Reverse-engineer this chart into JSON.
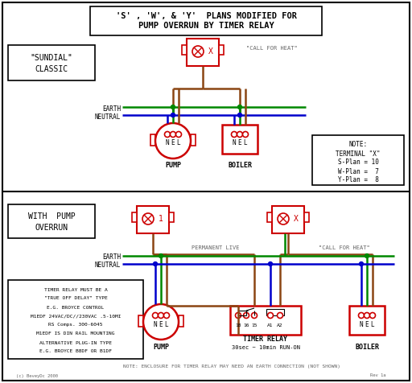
{
  "title_line1": "'S' , 'W', & 'Y'  PLANS MODIFIED FOR",
  "title_line2": "PUMP OVERRUN BY TIMER RELAY",
  "bg_color": "#ffffff",
  "red": "#cc0000",
  "green": "#008800",
  "blue": "#0000cc",
  "brown": "#8B4513",
  "gray": "#666666",
  "black": "#000000",
  "relay_text": [
    "TIMER RELAY MUST BE A",
    "\"TRUE OFF DELAY\" TYPE",
    "E.G. BROYCE CONTROL",
    "M1EDF 24VAC/DC//230VAC .5-10MI",
    "RS Comps. 300-6045",
    "M1EDF IS DIN RAIL MOUNTING",
    "ALTERNATIVE PLUG-IN TYPE",
    "E.G. BROYCE B8DF OR B1DF"
  ],
  "timer_note": "NOTE: ENCLOSURE FOR TIMER RELAY MAY NEED AN EARTH CONNECTION (NOT SHOWN)",
  "copyright": "(c) BeveyDc 2000",
  "rev": "Rev 1a",
  "figsize": [
    5.12,
    4.76
  ],
  "dpi": 100
}
